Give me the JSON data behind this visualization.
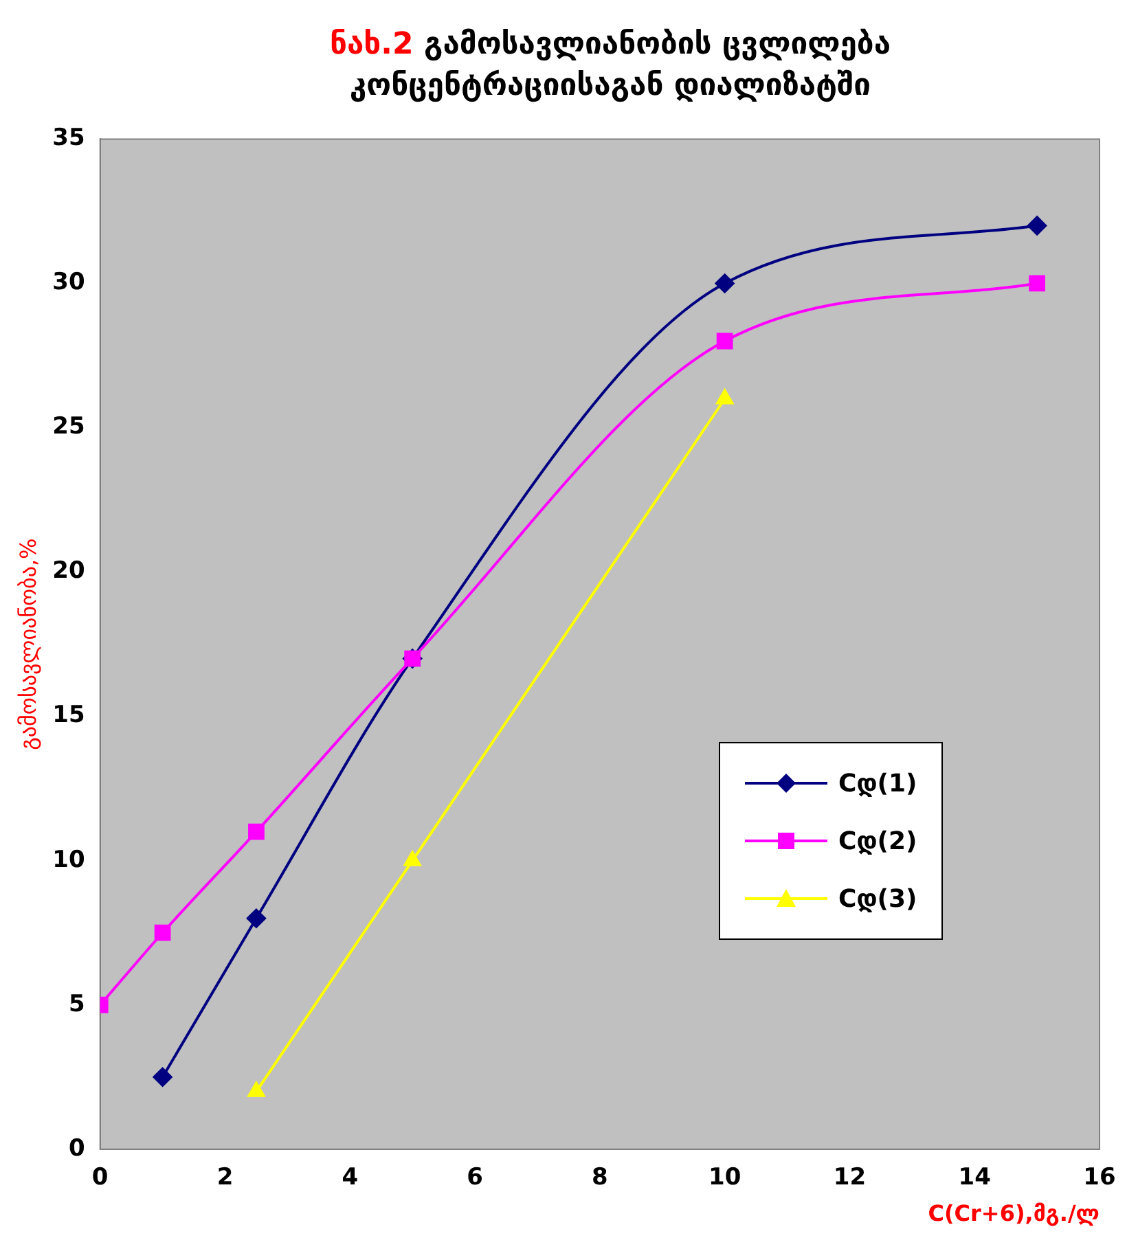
{
  "chart_data": {
    "type": "line",
    "title": "ნახ.2 გამოსავლიანობის ცვლილება კონცენტრაციისაგან დიალიზატში",
    "xlabel": "C(Cr+6),მგ./ლ",
    "ylabel": "გამოსავლიანობა,%",
    "xlim": [
      0,
      16
    ],
    "xticks": [
      0,
      2,
      4,
      6,
      8,
      10,
      12,
      14,
      16
    ],
    "ylim": [
      0,
      35
    ],
    "yticks": [
      0,
      5,
      10,
      15,
      20,
      25,
      30,
      35
    ],
    "grid": false,
    "legend": "right",
    "series": [
      {
        "name": "Cდ(1)",
        "color": "#000080",
        "marker": "diamond",
        "x": [
          1,
          2.5,
          5,
          10,
          15
        ],
        "values": [
          2.5,
          8,
          17,
          30,
          32
        ]
      },
      {
        "name": "Cდ(2)",
        "color": "#ff00ff",
        "marker": "square",
        "x": [
          0,
          1,
          2.5,
          5,
          10,
          15
        ],
        "values": [
          5,
          7.5,
          11,
          17,
          28,
          30
        ]
      },
      {
        "name": "Cდ(3)",
        "color": "#ffff00",
        "marker": "triangle",
        "x": [
          2.5,
          5,
          10
        ],
        "values": [
          2,
          10,
          26
        ]
      }
    ]
  }
}
